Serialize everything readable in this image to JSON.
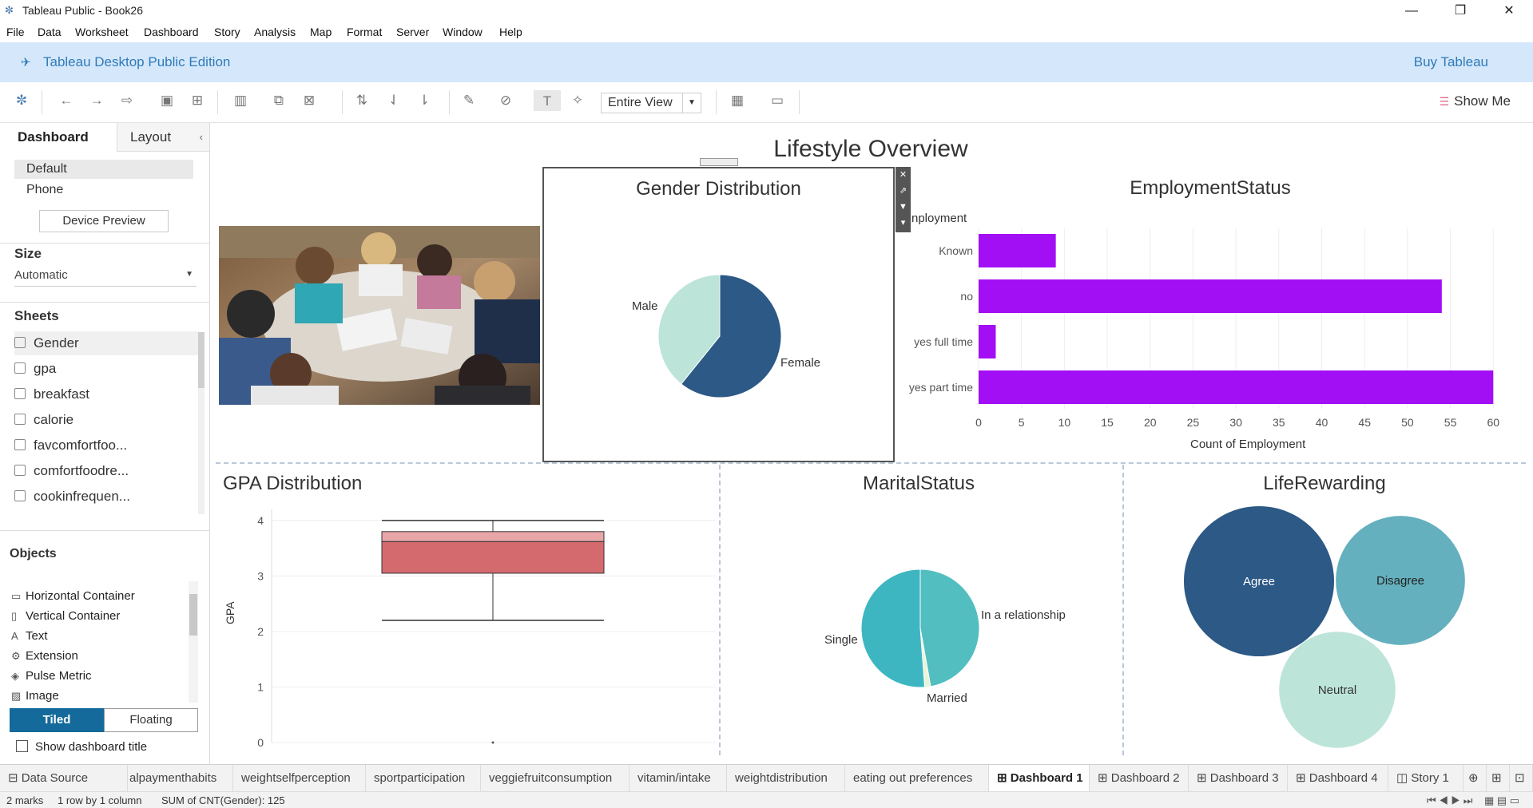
{
  "window": {
    "title": "Tableau Public - Book26",
    "minimize": "—",
    "restore": "❐",
    "close": "✕"
  },
  "menu": [
    "File",
    "Data",
    "Worksheet",
    "Dashboard",
    "Story",
    "Analysis",
    "Map",
    "Format",
    "Server",
    "Window",
    "Help"
  ],
  "banner": {
    "edition": "Tableau Desktop Public Edition",
    "buy": "Buy Tableau"
  },
  "toolbar": {
    "fit": "Entire View",
    "show_me": "Show Me"
  },
  "left_panel": {
    "tabs": {
      "dashboard": "Dashboard",
      "layout": "Layout"
    },
    "devices": {
      "default": "Default",
      "phone": "Phone",
      "preview_button": "Device Preview"
    },
    "size": {
      "header": "Size",
      "value": "Automatic"
    },
    "sheets": {
      "header": "Sheets",
      "items": [
        "Gender",
        "gpa",
        "breakfast",
        "calorie",
        "favcomfortfoo...",
        "comfortfoodre...",
        "cookinfrequen..."
      ]
    },
    "objects": {
      "header": "Objects",
      "items": [
        "Horizontal Container",
        "Vertical Container",
        "Text",
        "Extension",
        "Pulse Metric",
        "Image"
      ]
    },
    "mode": {
      "tiled": "Tiled",
      "floating": "Floating"
    },
    "show_title": "Show dashboard title"
  },
  "dashboard": {
    "title": "Lifestyle Overview",
    "gender": {
      "title": "Gender Distribution",
      "labels": {
        "male": "Male",
        "female": "Female"
      }
    },
    "employment": {
      "title": "EmploymentStatus",
      "header": "nployment",
      "xlabel": "Count of Employment"
    },
    "gpa": {
      "title": "GPA Distribution",
      "ylabel": "GPA"
    },
    "marital": {
      "title": "MaritalStatus",
      "labels": {
        "single": "Single",
        "rel": "In a relationship",
        "married": "Married"
      }
    },
    "life": {
      "title": "LifeRewarding",
      "labels": {
        "agree": "Agree",
        "disagree": "Disagree",
        "neutral": "Neutral"
      }
    }
  },
  "chart_data": [
    {
      "type": "pie",
      "title": "Gender Distribution",
      "categories": [
        "Female",
        "Male"
      ],
      "values": [
        76,
        49
      ],
      "colors": [
        "#2c5985",
        "#bde4d9"
      ]
    },
    {
      "type": "bar",
      "orientation": "horizontal",
      "title": "EmploymentStatus",
      "xlabel": "Count of Employment",
      "categories": [
        "Known",
        "no",
        "yes full time",
        "yes part time"
      ],
      "values": [
        9,
        54,
        2,
        60
      ],
      "xlim": [
        0,
        61
      ],
      "xticks": [
        0,
        5,
        10,
        15,
        20,
        25,
        30,
        35,
        40,
        45,
        50,
        55,
        60
      ],
      "color": "#a30ff5"
    },
    {
      "type": "box",
      "title": "GPA Distribution",
      "ylabel": "GPA",
      "ylim": [
        0,
        4.2
      ],
      "yticks": [
        0,
        1,
        2,
        3,
        4
      ],
      "min": 2.2,
      "q1": 3.05,
      "median": 3.62,
      "q3": 3.8,
      "max": 4.0,
      "color": "#d46a6e",
      "color_light": "#e8a6a8"
    },
    {
      "type": "pie",
      "title": "MaritalStatus",
      "categories": [
        "In a relationship",
        "Married",
        "Single"
      ],
      "values": [
        59,
        2,
        64
      ],
      "colors": [
        "#52bec0",
        "#e8f4d6",
        "#3eb6c2"
      ]
    },
    {
      "type": "bubble",
      "title": "LifeRewarding",
      "categories": [
        "Agree",
        "Disagree",
        "Neutral"
      ],
      "values": [
        50,
        37,
        30
      ],
      "colors": [
        "#2c5985",
        "#64b0be",
        "#bde4d9"
      ]
    }
  ],
  "sheet_tabs": [
    "Data Source",
    "alpaymenthabits",
    "weightselfperception",
    "sportparticipation",
    "veggiefruitconsumption",
    "vitamin/intake",
    "weightdistribution",
    "eating out preferences",
    "Dashboard 1",
    "Dashboard 2",
    "Dashboard 3",
    "Dashboard 4",
    "Story 1"
  ],
  "status": {
    "marks": "2 marks",
    "dims": "1 row by 1 column",
    "sum": "SUM of CNT(Gender): 125"
  }
}
